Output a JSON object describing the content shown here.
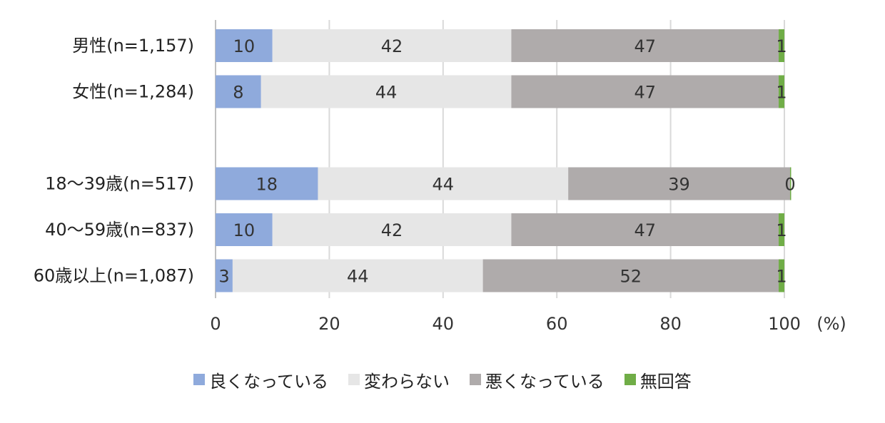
{
  "chart_data": {
    "type": "bar",
    "orientation": "horizontal",
    "stacked": true,
    "categories": [
      "男性(n=1,157)",
      "女性(n=1,284)",
      "",
      "18～39歳(n=517)",
      "40～59歳(n=837)",
      "60歳以上(n=1,087)"
    ],
    "series": [
      {
        "name": "良くなっている",
        "color": "#8faadc",
        "values": [
          10,
          8,
          null,
          18,
          10,
          3
        ]
      },
      {
        "name": "変わらない",
        "color": "#e6e6e6",
        "values": [
          42,
          44,
          null,
          44,
          42,
          44
        ]
      },
      {
        "name": "悪くなっている",
        "color": "#afabab",
        "values": [
          47,
          47,
          null,
          39,
          47,
          52
        ]
      },
      {
        "name": "無回答",
        "color": "#70ad47",
        "values": [
          1,
          1,
          null,
          0,
          1,
          1
        ]
      }
    ],
    "xlim": [
      0,
      100
    ],
    "xticks": [
      0,
      20,
      40,
      60,
      80,
      100
    ],
    "unit_label": "(%)",
    "grid": "vertical",
    "legend_position": "bottom"
  }
}
